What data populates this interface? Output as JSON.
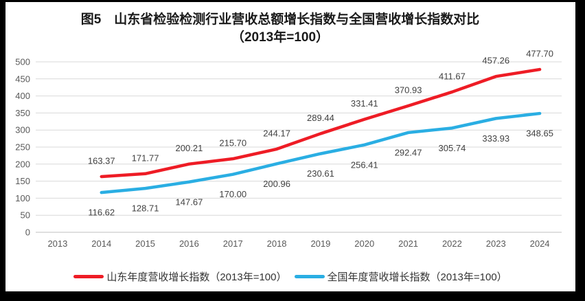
{
  "title": {
    "line1": "图5　山东省检验检测行业营收总额增长指数与全国营收增长指数对比",
    "line2": "（2013年=100）"
  },
  "colors": {
    "background": "#ffffff",
    "frame": "#000000",
    "gridline": "#d9d9d9",
    "axis_line": "#bfbfbf",
    "tick_label": "#595959",
    "data_label": "#404040",
    "shandong_red": "#ee1c25",
    "national_blue": "#2aaee3"
  },
  "chart_data": {
    "type": "line",
    "x": [
      "2013",
      "2014",
      "2015",
      "2016",
      "2017",
      "2018",
      "2019",
      "2020",
      "2021",
      "2022",
      "2023",
      "2024"
    ],
    "series": [
      {
        "name": "山东年度营收增长指数（2013年=100）",
        "color": "#ee1c25",
        "start_index": 1,
        "values": [
          "163.37",
          "171.77",
          "200.21",
          "215.70",
          "244.17",
          "289.44",
          "331.41",
          "370.93",
          "411.67",
          "457.26",
          "477.70"
        ],
        "label_position": "above"
      },
      {
        "name": "全国年度营收增长指数（2013年=100）",
        "color": "#2aaee3",
        "start_index": 1,
        "values": [
          "116.62",
          "128.71",
          "147.67",
          "170.00",
          "200.96",
          "230.61",
          "256.41",
          "292.47",
          "305.74",
          "333.93",
          "348.65"
        ],
        "label_position": "below"
      }
    ],
    "ylim": [
      0,
      500
    ],
    "ytick_step": 50,
    "yticks": [
      "0",
      "50",
      "100",
      "150",
      "200",
      "250",
      "300",
      "350",
      "400",
      "450",
      "500"
    ],
    "grid": true,
    "legend_position": "bottom",
    "data_labels": true
  }
}
